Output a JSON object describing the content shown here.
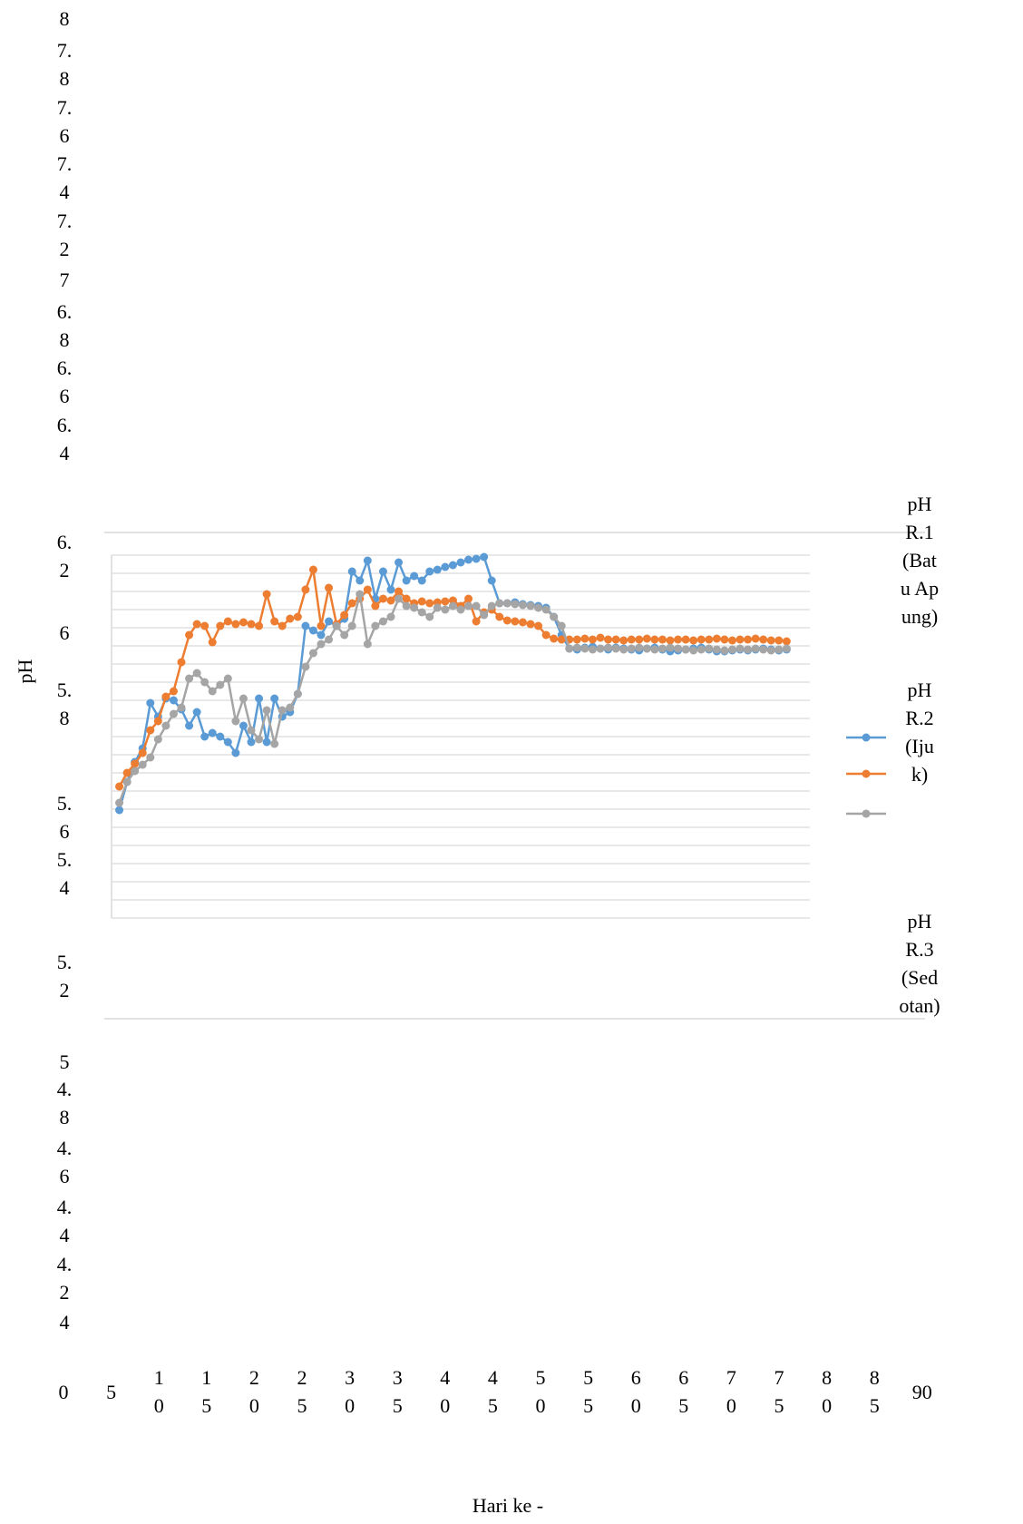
{
  "chart_data": {
    "type": "line",
    "y_label": "pH",
    "x_label": "Hari ke -",
    "xlim": [
      0,
      90
    ],
    "ylim": [
      4,
      8
    ],
    "xticks": [
      0,
      5,
      10,
      15,
      20,
      25,
      30,
      35,
      40,
      45,
      50,
      55,
      60,
      65,
      70,
      75,
      80,
      85,
      90
    ],
    "yticks": [
      4,
      4.2,
      4.4,
      4.6,
      4.8,
      5,
      5.2,
      5.4,
      5.6,
      5.8,
      6,
      6.2,
      6.4,
      6.6,
      6.8,
      7,
      7.2,
      7.4,
      7.6,
      7.8,
      8
    ],
    "grid": true,
    "legend": "right",
    "x": [
      1,
      2,
      3,
      4,
      5,
      6,
      7,
      8,
      9,
      10,
      11,
      12,
      13,
      14,
      15,
      16,
      17,
      18,
      19,
      20,
      21,
      22,
      23,
      24,
      25,
      26,
      27,
      28,
      29,
      30,
      31,
      32,
      33,
      34,
      35,
      36,
      37,
      38,
      39,
      40,
      41,
      42,
      43,
      44,
      45,
      46,
      47,
      48,
      49,
      50,
      51,
      52,
      53,
      54,
      55,
      56,
      57,
      58,
      59,
      60,
      61,
      62,
      63,
      64,
      65,
      66,
      67,
      68,
      69,
      70,
      71,
      72,
      73,
      74,
      75,
      76,
      77,
      78,
      79,
      80,
      81,
      82,
      83,
      84,
      85,
      86,
      87
    ],
    "series": [
      {
        "name": "pH R.1 (Batu Apung)",
        "color": "#5b9bd5",
        "values": [
          5.19,
          5.5,
          5.72,
          5.87,
          6.37,
          6.22,
          6.42,
          6.4,
          6.3,
          6.12,
          6.27,
          6.0,
          6.04,
          6.0,
          5.94,
          5.82,
          6.12,
          5.94,
          6.42,
          5.94,
          6.42,
          6.22,
          6.27,
          6.47,
          7.22,
          7.17,
          7.12,
          7.27,
          7.22,
          7.3,
          7.82,
          7.72,
          7.94,
          7.52,
          7.82,
          7.62,
          7.92,
          7.72,
          7.77,
          7.72,
          7.82,
          7.84,
          7.87,
          7.89,
          7.92,
          7.95,
          7.96,
          7.98,
          7.72,
          7.47,
          7.47,
          7.48,
          7.46,
          7.45,
          7.44,
          7.42,
          7.32,
          7.12,
          6.97,
          6.96,
          6.98,
          6.99,
          6.97,
          6.96,
          6.98,
          6.97,
          6.96,
          6.95,
          6.97,
          6.98,
          6.96,
          6.94,
          6.95,
          6.96,
          6.97,
          6.98,
          6.96,
          6.94,
          6.94,
          6.95,
          6.96,
          6.95,
          6.96,
          6.97,
          6.96,
          6.95,
          6.96
        ]
      },
      {
        "name": "pH R.2 (Ijuk)",
        "color": "#ed7d31",
        "values": [
          5.45,
          5.6,
          5.7,
          5.82,
          6.07,
          6.17,
          6.44,
          6.5,
          6.82,
          7.12,
          7.24,
          7.22,
          7.04,
          7.22,
          7.27,
          7.24,
          7.26,
          7.24,
          7.22,
          7.57,
          7.27,
          7.22,
          7.3,
          7.32,
          7.62,
          7.84,
          7.22,
          7.64,
          7.24,
          7.34,
          7.47,
          7.52,
          7.62,
          7.44,
          7.52,
          7.5,
          7.6,
          7.52,
          7.47,
          7.49,
          7.47,
          7.48,
          7.49,
          7.5,
          7.44,
          7.52,
          7.27,
          7.37,
          7.4,
          7.32,
          7.28,
          7.27,
          7.26,
          7.24,
          7.22,
          7.12,
          7.08,
          7.07,
          7.07,
          7.07,
          7.08,
          7.07,
          7.09,
          7.07,
          7.07,
          7.06,
          7.07,
          7.07,
          7.08,
          7.07,
          7.07,
          7.06,
          7.07,
          7.07,
          7.06,
          7.07,
          7.07,
          7.08,
          7.07,
          7.06,
          7.07,
          7.07,
          7.08,
          7.07,
          7.06,
          7.06,
          7.05
        ]
      },
      {
        "name": "pH R.3 (Sedotan)",
        "color": "#a5a5a5",
        "values": [
          5.27,
          5.5,
          5.62,
          5.69,
          5.77,
          5.97,
          6.12,
          6.25,
          6.32,
          6.64,
          6.7,
          6.6,
          6.5,
          6.57,
          6.64,
          6.17,
          6.42,
          6.07,
          5.97,
          6.29,
          5.92,
          6.29,
          6.32,
          6.47,
          6.77,
          6.92,
          7.02,
          7.07,
          7.22,
          7.12,
          7.22,
          7.57,
          7.02,
          7.22,
          7.27,
          7.32,
          7.52,
          7.44,
          7.42,
          7.37,
          7.32,
          7.42,
          7.4,
          7.44,
          7.4,
          7.44,
          7.44,
          7.34,
          7.44,
          7.47,
          7.47,
          7.46,
          7.45,
          7.44,
          7.42,
          7.4,
          7.32,
          7.22,
          6.97,
          6.98,
          6.97,
          6.96,
          6.97,
          6.98,
          6.97,
          6.96,
          6.97,
          6.98,
          6.97,
          6.96,
          6.97,
          6.98,
          6.97,
          6.96,
          6.95,
          6.96,
          6.97,
          6.96,
          6.95,
          6.96,
          6.97,
          6.96,
          6.97,
          6.96,
          6.95,
          6.96,
          6.97
        ]
      }
    ]
  }
}
